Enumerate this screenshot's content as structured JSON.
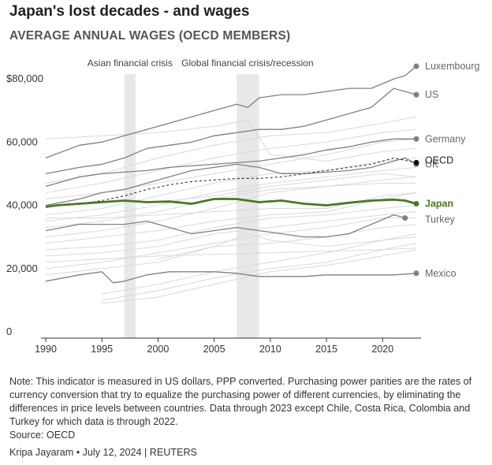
{
  "header": {
    "title": "Japan's lost decades - and wages",
    "subtitle": "AVERAGE ANNUAL WAGES (OECD MEMBERS)"
  },
  "footer": {
    "note": "Note: This indicator is measured in US dollars, PPP converted. Purchasing power parities are the rates of currency conversion that try to equalize the purchasing power of different currencies, by eliminating the differences in price levels between countries. Data through 2023 except Chile, Costa Rica, Colombia and Turkey for which data is through 2022.",
    "source": "Source: OECD",
    "credit": "Kripa Jayaram • July 12, 2024 | REUTERS"
  },
  "colors": {
    "japan": "#4a7a1e",
    "labeled": "#808080",
    "background_lines": "#d9d9d9",
    "oecd": "#222222",
    "shade": "#e8e8e8"
  },
  "chart_data": {
    "type": "line",
    "title": "AVERAGE ANNUAL WAGES (OECD MEMBERS)",
    "xlabel": "",
    "ylabel": "",
    "xlim": [
      1990,
      2023
    ],
    "ylim": [
      0,
      85000
    ],
    "x_ticks": [
      1990,
      1995,
      2000,
      2005,
      2010,
      2015,
      2020
    ],
    "x_tick_labels": [
      "1990",
      "1995",
      "2000",
      "2005",
      "2010",
      "2015",
      "2020"
    ],
    "y_ticks": [
      0,
      20000,
      40000,
      60000,
      80000
    ],
    "y_tick_labels": [
      "0",
      "20,000",
      "40,000",
      "60,000",
      "$80,000"
    ],
    "shaded_periods": [
      {
        "label": "Asian financial crisis",
        "start": 1997,
        "end": 1998
      },
      {
        "label": "Global financial crisis/recession",
        "start": 2007,
        "end": 2009
      }
    ],
    "series": [
      {
        "name": "Luxembourg",
        "style": "labeled",
        "x": [
          1990,
          1993,
          1995,
          1997,
          1999,
          2001,
          2003,
          2005,
          2007,
          2008,
          2009,
          2011,
          2013,
          2015,
          2017,
          2019,
          2021,
          2022,
          2023
        ],
        "values": [
          55000,
          59000,
          60000,
          62000,
          64000,
          66000,
          68000,
          70000,
          72000,
          71000,
          74000,
          75000,
          75000,
          76000,
          77000,
          77000,
          80000,
          81000,
          84000
        ]
      },
      {
        "name": "US",
        "style": "labeled",
        "x": [
          1990,
          1993,
          1995,
          1997,
          1999,
          2001,
          2003,
          2005,
          2007,
          2009,
          2011,
          2013,
          2015,
          2017,
          2019,
          2020,
          2021,
          2022,
          2023
        ],
        "values": [
          50000,
          52000,
          53000,
          55000,
          58000,
          59000,
          60000,
          62000,
          63000,
          64000,
          64000,
          65000,
          67000,
          69000,
          71000,
          74000,
          77000,
          76000,
          75000
        ]
      },
      {
        "name": "Germany",
        "style": "labeled",
        "x": [
          1990,
          1993,
          1995,
          1997,
          1999,
          2001,
          2003,
          2005,
          2007,
          2009,
          2011,
          2013,
          2015,
          2017,
          2019,
          2021,
          2023
        ],
        "values": [
          46000,
          49000,
          50000,
          50500,
          51000,
          52000,
          52500,
          53000,
          53500,
          54000,
          55000,
          56000,
          57500,
          58500,
          60000,
          61000,
          61000
        ]
      },
      {
        "name": "UK",
        "style": "labeled",
        "x": [
          1990,
          1993,
          1995,
          1997,
          1999,
          2001,
          2003,
          2005,
          2007,
          2009,
          2011,
          2013,
          2015,
          2017,
          2019,
          2021,
          2022,
          2023
        ],
        "values": [
          40000,
          42000,
          44000,
          45000,
          47000,
          49000,
          51000,
          52000,
          53000,
          52000,
          50000,
          50000,
          50500,
          51000,
          52000,
          54000,
          55000,
          53000
        ]
      },
      {
        "name": "Turkey",
        "style": "labeled",
        "x": [
          1990,
          1993,
          1995,
          1997,
          1999,
          2001,
          2003,
          2005,
          2007,
          2009,
          2011,
          2013,
          2015,
          2017,
          2019,
          2021,
          2022
        ],
        "values": [
          32000,
          34000,
          34000,
          34000,
          35000,
          33000,
          31000,
          32000,
          33000,
          32000,
          31000,
          30000,
          30000,
          31000,
          34000,
          37000,
          36000
        ]
      },
      {
        "name": "Mexico",
        "style": "labeled",
        "x": [
          1990,
          1993,
          1995,
          1996,
          1997,
          1999,
          2001,
          2003,
          2005,
          2007,
          2009,
          2011,
          2013,
          2015,
          2017,
          2019,
          2021,
          2023
        ],
        "values": [
          16000,
          18000,
          19000,
          15500,
          16000,
          18000,
          19000,
          19000,
          19000,
          18500,
          17500,
          17500,
          17500,
          18000,
          18000,
          18000,
          18000,
          18500
        ]
      },
      {
        "name": "OECD",
        "style": "dashed",
        "x": [
          1990,
          1993,
          1995,
          1997,
          1999,
          2001,
          2003,
          2005,
          2007,
          2009,
          2011,
          2013,
          2015,
          2017,
          2019,
          2021,
          2023
        ],
        "values": [
          39500,
          40500,
          41500,
          43000,
          45000,
          46500,
          47500,
          48000,
          48500,
          48500,
          49000,
          50000,
          51000,
          52000,
          53000,
          55000,
          53500
        ]
      },
      {
        "name": "Japan",
        "style": "highlight",
        "x": [
          1990,
          1991,
          1993,
          1995,
          1997,
          1999,
          2001,
          2003,
          2005,
          2007,
          2009,
          2011,
          2013,
          2015,
          2017,
          2019,
          2021,
          2022,
          2023
        ],
        "values": [
          39500,
          40000,
          40500,
          41000,
          41500,
          41000,
          41200,
          40500,
          42000,
          42000,
          41000,
          41500,
          40500,
          40000,
          40800,
          41500,
          41800,
          41500,
          40500
        ]
      }
    ],
    "background_series": [
      {
        "x": [
          1990,
          1995,
          2000,
          2005,
          2010,
          2015,
          2020,
          2023
        ],
        "values": [
          47000,
          50000,
          55000,
          59000,
          62000,
          63000,
          66000,
          68000
        ]
      },
      {
        "x": [
          1990,
          1995,
          2000,
          2005,
          2010,
          2015,
          2020,
          2023
        ],
        "values": [
          44000,
          47000,
          51000,
          55000,
          58000,
          60000,
          63000,
          64000
        ]
      },
      {
        "x": [
          1990,
          1995,
          2000,
          2005,
          2010,
          2015,
          2020,
          2023
        ],
        "values": [
          42000,
          44000,
          47000,
          50000,
          53000,
          56000,
          60000,
          61000
        ]
      },
      {
        "x": [
          1990,
          1995,
          2000,
          2005,
          2010,
          2015,
          2020,
          2023
        ],
        "values": [
          37000,
          39000,
          43000,
          47000,
          50000,
          51000,
          54000,
          55000
        ]
      },
      {
        "x": [
          1990,
          1995,
          2000,
          2005,
          2010,
          2015,
          2020,
          2023
        ],
        "values": [
          35000,
          37000,
          40000,
          44000,
          47000,
          49000,
          51000,
          52000
        ]
      },
      {
        "x": [
          1990,
          1995,
          2000,
          2005,
          2010,
          2015,
          2020,
          2023
        ],
        "values": [
          33000,
          35000,
          38000,
          42000,
          45000,
          46000,
          48000,
          49000
        ]
      },
      {
        "x": [
          1990,
          1995,
          2000,
          2005,
          2010,
          2015,
          2020,
          2023
        ],
        "values": [
          30000,
          32000,
          35000,
          39000,
          44000,
          46000,
          47000,
          47000
        ]
      },
      {
        "x": [
          1990,
          1995,
          2000,
          2005,
          2010,
          2015,
          2020,
          2023
        ],
        "values": [
          28000,
          30000,
          32000,
          35000,
          37000,
          38000,
          42000,
          44000
        ]
      },
      {
        "x": [
          1990,
          1995,
          2000,
          2005,
          2010,
          2015,
          2020,
          2023
        ],
        "values": [
          26000,
          27000,
          29000,
          33000,
          36000,
          37000,
          39000,
          40000
        ]
      },
      {
        "x": [
          1990,
          1995,
          2000,
          2005,
          2010,
          2015,
          2020,
          2023
        ],
        "values": [
          24000,
          25000,
          27000,
          31000,
          33000,
          35000,
          37000,
          38000
        ]
      },
      {
        "x": [
          1990,
          1995,
          2000,
          2005,
          2010,
          2015,
          2020,
          2023
        ],
        "values": [
          20000,
          22000,
          25000,
          28000,
          31000,
          33000,
          36000,
          36000
        ]
      },
      {
        "x": [
          1990,
          1995,
          2000,
          2005,
          2010,
          2015,
          2020,
          2023
        ],
        "values": [
          18000,
          20000,
          22000,
          27000,
          28000,
          30000,
          33000,
          34000
        ]
      },
      {
        "x": [
          1995,
          2000,
          2005,
          2010,
          2015,
          2020,
          2023
        ],
        "values": [
          12000,
          15000,
          19000,
          22000,
          25000,
          29000,
          30000
        ]
      },
      {
        "x": [
          1995,
          2000,
          2005,
          2010,
          2015,
          2020,
          2023
        ],
        "values": [
          10000,
          13000,
          17000,
          20000,
          22000,
          26000,
          28000
        ]
      },
      {
        "x": [
          1995,
          2000,
          2005,
          2010,
          2015,
          2020,
          2023
        ],
        "values": [
          9000,
          11000,
          15000,
          19000,
          21000,
          24000,
          26000
        ]
      },
      {
        "x": [
          2000,
          2005,
          2008,
          2010,
          2015,
          2020,
          2023
        ],
        "values": [
          23000,
          27000,
          31000,
          29000,
          27000,
          29000,
          31000
        ]
      },
      {
        "x": [
          1990,
          1995,
          2000,
          2005,
          2010,
          2015,
          2020,
          2023
        ],
        "values": [
          22000,
          23000,
          24000,
          24500,
          25000,
          25500,
          26000,
          26500
        ]
      },
      {
        "x": [
          1990,
          1995,
          2000,
          2005,
          2008,
          2010,
          2015,
          2020,
          2023
        ],
        "values": [
          61000,
          62000,
          63000,
          65000,
          67000,
          56000,
          54000,
          57000,
          58000
        ]
      },
      {
        "x": [
          2000,
          2005,
          2010,
          2015,
          2020,
          2023
        ],
        "values": [
          41000,
          43000,
          46000,
          48000,
          50000,
          49000
        ]
      },
      {
        "x": [
          1990,
          1995,
          2000,
          2005,
          2010,
          2015,
          2020,
          2023
        ],
        "values": [
          36000,
          36000,
          37000,
          38000,
          39000,
          39000,
          43000,
          44000
        ]
      }
    ]
  }
}
